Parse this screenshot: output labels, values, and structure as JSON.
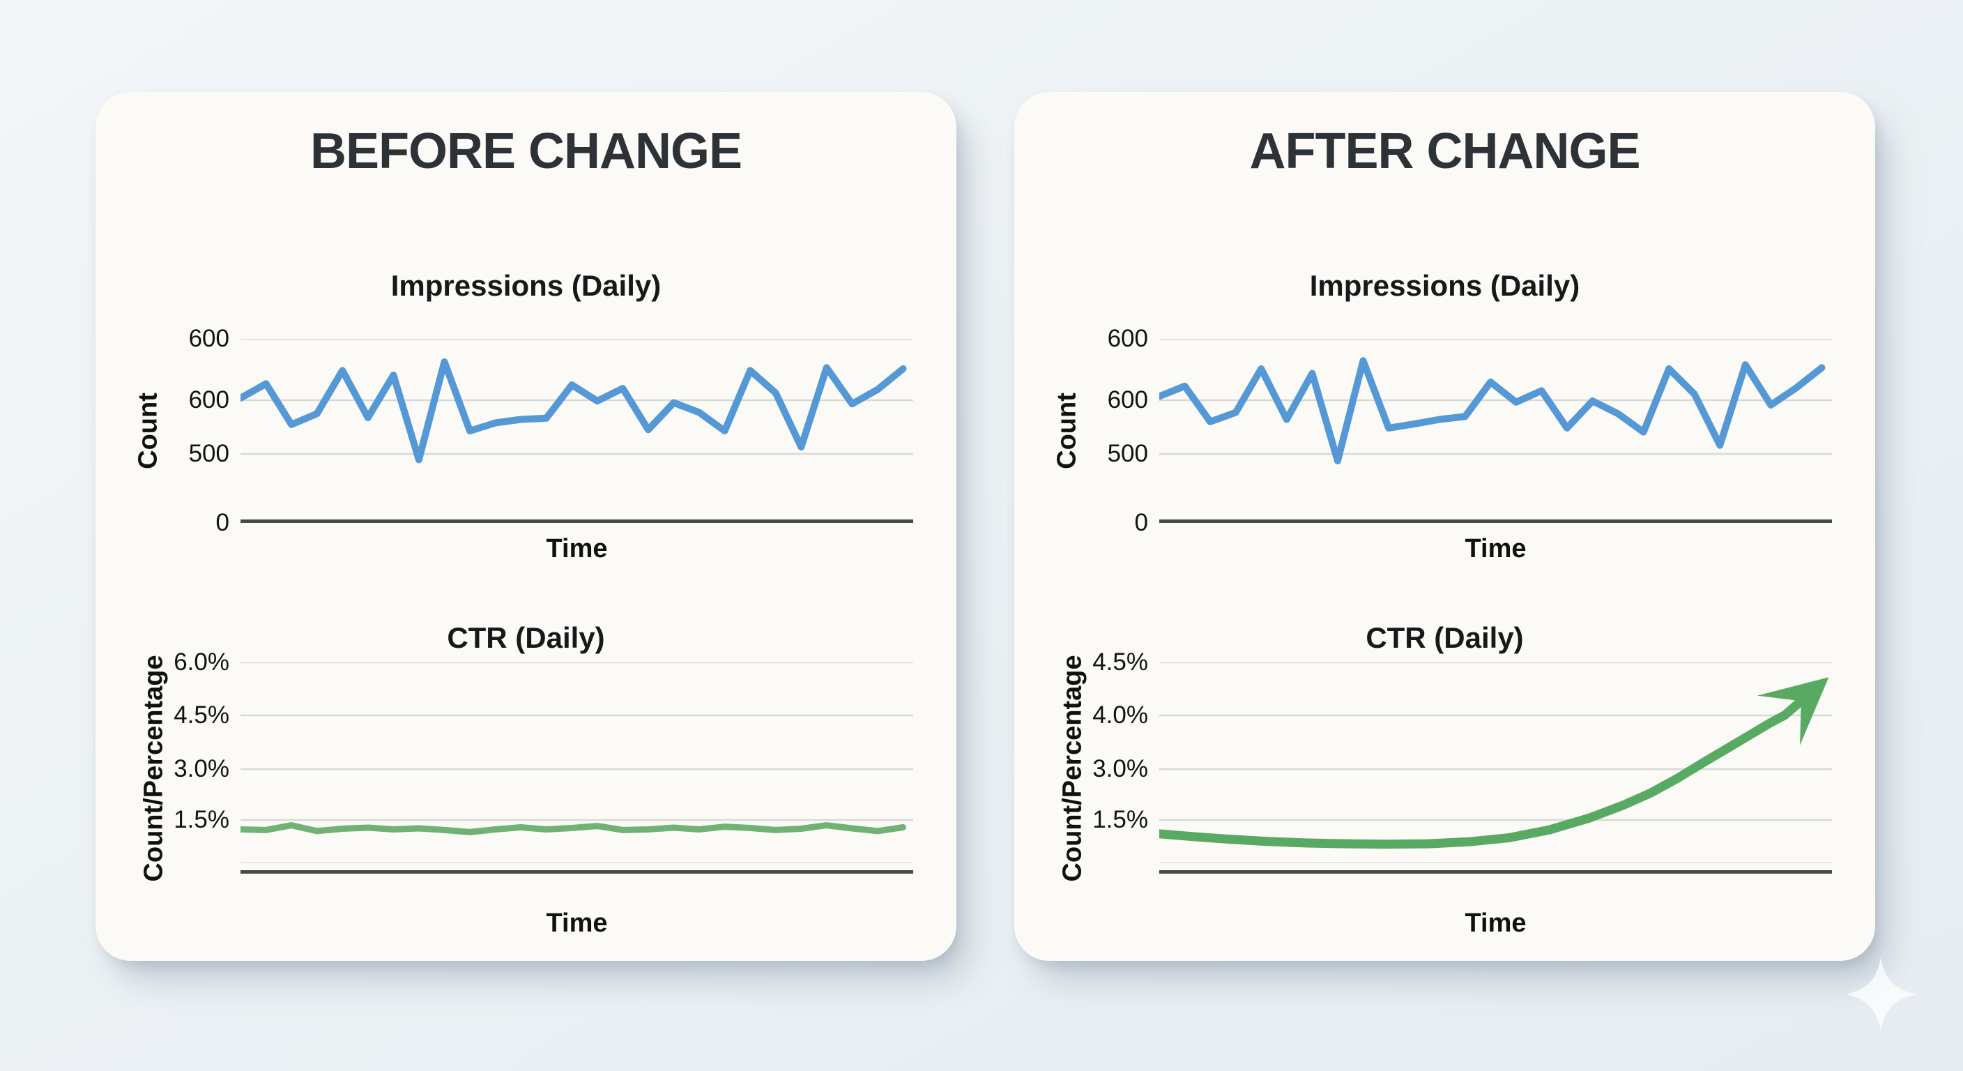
{
  "page": {
    "background": "#ecf1f4",
    "card_background": "#fbfaf7",
    "watermark_icon": "four-point-sparkle",
    "watermark_color": "#ffffff"
  },
  "panels": [
    {
      "title": "BEFORE CHANGE"
    },
    {
      "title": "AFTER CHANGE"
    }
  ],
  "chart_data": [
    {
      "id": "before-impressions",
      "type": "line",
      "title": "Impressions (Daily)",
      "xlabel": "Time",
      "ylabel": "Count",
      "ytick_labels": [
        "600",
        "600",
        "500",
        "0"
      ],
      "ylim": [
        380,
        700
      ],
      "grid": "horizontal",
      "legend": "none",
      "line_color": "#5598d6",
      "values": [
        597,
        622,
        551,
        570,
        645,
        563,
        637,
        490,
        660,
        540,
        554,
        560,
        562,
        620,
        592,
        614,
        542,
        589,
        572,
        540,
        645,
        606,
        512,
        650,
        587,
        612,
        648
      ]
    },
    {
      "id": "before-ctr",
      "type": "line",
      "title": "CTR (Daily)",
      "xlabel": "Time",
      "ylabel": "Count/Percentage",
      "ytick_labels": [
        "6.0%",
        "4.5%",
        "3.0%",
        "1.5%"
      ],
      "ylim": [
        0,
        6.2
      ],
      "grid": "horizontal",
      "legend": "none",
      "line_color": "#6fb273",
      "values": [
        1.3,
        1.28,
        1.42,
        1.25,
        1.32,
        1.35,
        1.3,
        1.33,
        1.28,
        1.22,
        1.3,
        1.36,
        1.3,
        1.34,
        1.4,
        1.28,
        1.3,
        1.35,
        1.3,
        1.38,
        1.34,
        1.28,
        1.32,
        1.42,
        1.33,
        1.25,
        1.36
      ]
    },
    {
      "id": "after-impressions",
      "type": "line",
      "title": "Impressions (Daily)",
      "xlabel": "Time",
      "ylabel": "Count",
      "ytick_labels": [
        "600",
        "600",
        "500",
        "0"
      ],
      "ylim": [
        380,
        700
      ],
      "grid": "horizontal",
      "legend": "none",
      "line_color": "#5598d6",
      "values": [
        600,
        618,
        556,
        572,
        648,
        560,
        640,
        488,
        662,
        545,
        552,
        560,
        565,
        625,
        590,
        610,
        545,
        592,
        570,
        538,
        648,
        604,
        515,
        655,
        585,
        615,
        650
      ]
    },
    {
      "id": "after-ctr",
      "type": "line",
      "title": "CTR (Daily)",
      "xlabel": "Time",
      "ylabel": "Count/Percentage",
      "ytick_labels": [
        "4.5%",
        "4.0%",
        "3.0%",
        "1.5%"
      ],
      "ylim": [
        0,
        5.3
      ],
      "grid": "horizontal",
      "legend": "none",
      "line_color": "#58aa62",
      "arrow": true,
      "values": [
        [
          0,
          1.0
        ],
        [
          0.05,
          0.93
        ],
        [
          0.1,
          0.87
        ],
        [
          0.16,
          0.81
        ],
        [
          0.22,
          0.77
        ],
        [
          0.28,
          0.75
        ],
        [
          0.34,
          0.74
        ],
        [
          0.4,
          0.75
        ],
        [
          0.46,
          0.8
        ],
        [
          0.52,
          0.9
        ],
        [
          0.58,
          1.1
        ],
        [
          0.64,
          1.4
        ],
        [
          0.69,
          1.72
        ],
        [
          0.73,
          2.02
        ],
        [
          0.77,
          2.39
        ],
        [
          0.81,
          2.8
        ],
        [
          0.85,
          3.2
        ],
        [
          0.88,
          3.5
        ],
        [
          0.906,
          3.76
        ],
        [
          0.93,
          3.98
        ],
        [
          0.952,
          4.3
        ]
      ]
    }
  ]
}
